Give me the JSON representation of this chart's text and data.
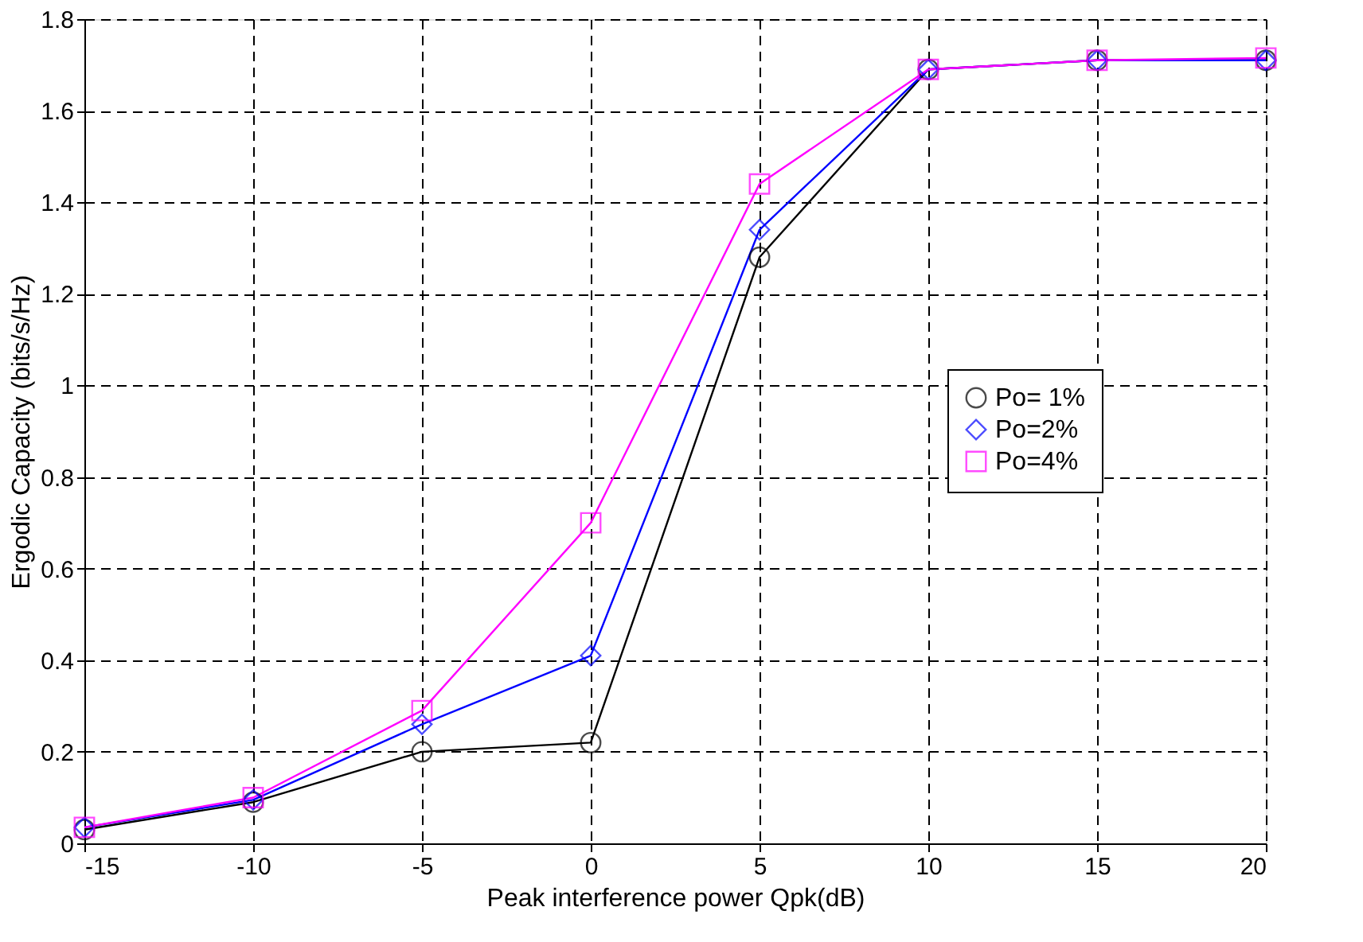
{
  "chart_data": {
    "type": "line",
    "xlabel": "Peak interference power Qpk(dB)",
    "ylabel": "Ergodic Capacity (bits/s/Hz)",
    "x": [
      -15,
      -10,
      -5,
      0,
      5,
      10,
      15,
      20
    ],
    "series": [
      {
        "name": "Po= 1%",
        "color": "#000000",
        "marker": "circle",
        "values": [
          0.03,
          0.09,
          0.2,
          0.22,
          1.28,
          1.69,
          1.71,
          1.71
        ]
      },
      {
        "name": "Po=2%",
        "color": "#0000ff",
        "marker": "diamond",
        "values": [
          0.035,
          0.095,
          0.26,
          0.41,
          1.34,
          1.69,
          1.71,
          1.71
        ]
      },
      {
        "name": "Po=4%",
        "color": "#ff00ff",
        "marker": "square",
        "values": [
          0.035,
          0.1,
          0.29,
          0.7,
          1.44,
          1.69,
          1.71,
          1.715
        ]
      }
    ],
    "xlim": [
      -15,
      20
    ],
    "xticks": [
      -15,
      -10,
      -5,
      0,
      5,
      10,
      15,
      20
    ],
    "ylim": [
      0,
      1.8
    ],
    "yticks": [
      0,
      0.2,
      0.4,
      0.6,
      0.8,
      1,
      1.2,
      1.4,
      1.6,
      1.8
    ],
    "grid": true,
    "legend": "right",
    "line_style": "solid"
  }
}
